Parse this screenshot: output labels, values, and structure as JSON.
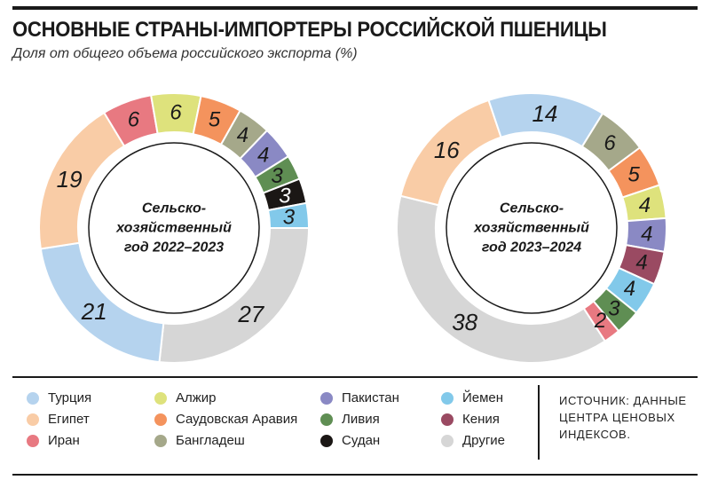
{
  "title": "ОСНОВНЫЕ СТРАНЫ-ИМПОРТЕРЫ РОССИЙСКОЙ ПШЕНИЦЫ",
  "subtitle": "Доля от общего объема российского экспорта (%)",
  "colors": {
    "Турция": "#b5d3ee",
    "Египет": "#f9cca6",
    "Иран": "#e87981",
    "Алжир": "#dee27c",
    "Саудовская Аравия": "#f4935d",
    "Бангладеш": "#a5a88a",
    "Пакистан": "#8a89c4",
    "Ливия": "#5f8e53",
    "Судан": "#1b1715",
    "Йемен": "#82c9ea",
    "Кения": "#9a4a62",
    "Другие": "#d6d6d6"
  },
  "chart_data": [
    {
      "type": "pie",
      "center_label": [
        "Сельско-",
        "хозяйственный",
        "год 2022–2023"
      ],
      "slices": [
        {
          "name": "Другие",
          "value": 27
        },
        {
          "name": "Турция",
          "value": 21
        },
        {
          "name": "Египет",
          "value": 19
        },
        {
          "name": "Иран",
          "value": 6
        },
        {
          "name": "Алжир",
          "value": 6
        },
        {
          "name": "Саудовская Аравия",
          "value": 5
        },
        {
          "name": "Бангладеш",
          "value": 4
        },
        {
          "name": "Пакистан",
          "value": 4
        },
        {
          "name": "Ливия",
          "value": 3
        },
        {
          "name": "Судан",
          "value": 3
        },
        {
          "name": "Йемен",
          "value": 3
        }
      ]
    },
    {
      "type": "pie",
      "center_label": [
        "Сельско-",
        "хозяйственный",
        "год 2023–2024"
      ],
      "slices": [
        {
          "name": "Другие",
          "value": 38
        },
        {
          "name": "Египет",
          "value": 16
        },
        {
          "name": "Турция",
          "value": 14
        },
        {
          "name": "Бангладеш",
          "value": 6
        },
        {
          "name": "Саудовская Аравия",
          "value": 5
        },
        {
          "name": "Алжир",
          "value": 4
        },
        {
          "name": "Пакистан",
          "value": 4
        },
        {
          "name": "Кения",
          "value": 4
        },
        {
          "name": "Йемен",
          "value": 4
        },
        {
          "name": "Ливия",
          "value": 3
        },
        {
          "name": "Иран",
          "value": 2
        }
      ]
    }
  ],
  "legend": [
    [
      "Турция",
      "Египет",
      "Иран"
    ],
    [
      "Алжир",
      "Саудовская Аравия",
      "Бангладеш"
    ],
    [
      "Пакистан",
      "Ливия",
      "Судан"
    ],
    [
      "Йемен",
      "Кения",
      "Другие"
    ]
  ],
  "source": "ИСТОЧНИК: ДАННЫЕ ЦЕНТРА ЦЕНОВЫХ ИНДЕКСОВ."
}
